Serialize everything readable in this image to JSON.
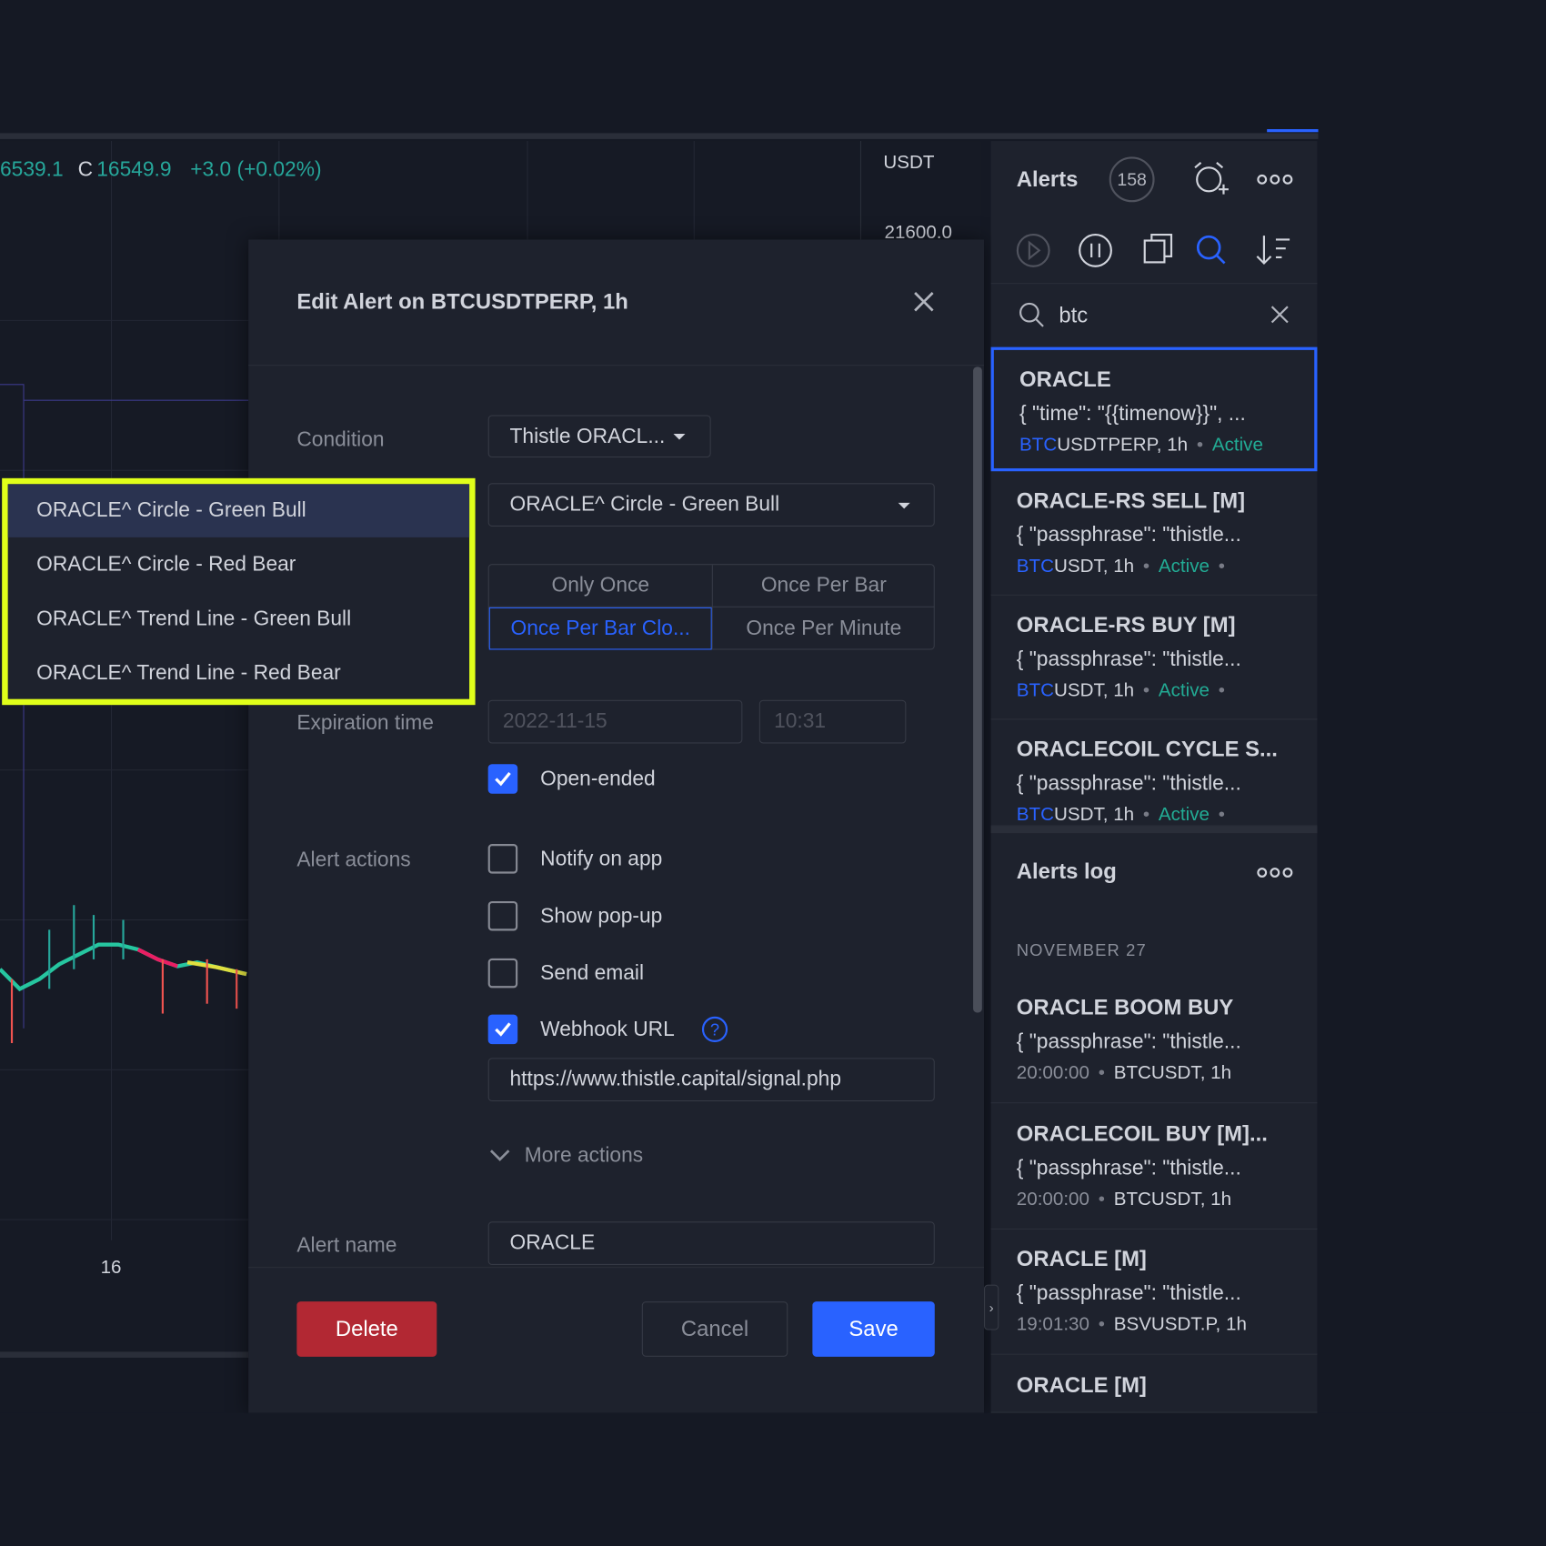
{
  "chart": {
    "ohlc_prefix": "6539.1",
    "close_label": "C",
    "close_value": "16549.9",
    "change": "+3.0 (+0.02%)",
    "currency": "USDT",
    "price_tick": "21600.0",
    "time_tick": "16"
  },
  "dialog": {
    "title": "Edit Alert on BTCUSDTPERP, 1h",
    "condition_label": "Condition",
    "condition_source": "Thistle ORACL...",
    "condition_value": "ORACLE^ Circle - Green Bull",
    "trigger_options": [
      "Only Once",
      "Once Per Bar",
      "Once Per Bar Clo...",
      "Once Per Minute"
    ],
    "expiration_label": "Expiration time",
    "expiration_date": "2022-11-15",
    "expiration_time": "10:31",
    "open_ended": "Open-ended",
    "actions_label": "Alert actions",
    "actions": [
      {
        "label": "Notify on app",
        "checked": false
      },
      {
        "label": "Show pop-up",
        "checked": false
      },
      {
        "label": "Send email",
        "checked": false
      },
      {
        "label": "Webhook URL",
        "checked": true
      }
    ],
    "webhook_url": "https://www.thistle.capital/signal.php",
    "more_actions": "More actions",
    "name_label": "Alert name",
    "name_value": "ORACLE",
    "buttons": {
      "delete": "Delete",
      "cancel": "Cancel",
      "save": "Save"
    }
  },
  "dropdown": {
    "options": [
      "ORACLE^ Circle - Green Bull",
      "ORACLE^ Circle - Red Bear",
      "ORACLE^ Trend Line - Green Bull",
      "ORACLE^ Trend Line - Red Bear"
    ]
  },
  "alerts": {
    "title": "Alerts",
    "count": "158",
    "search": "btc",
    "items": [
      {
        "name": "ORACLE",
        "message": "{ \"time\": \"{{timenow}}\", ...",
        "match": "BTC",
        "symbol": "USDTPERP, 1h",
        "status": "Active"
      },
      {
        "name": "ORACLE-RS SELL [M]",
        "message": "{ \"passphrase\": \"thistle...",
        "match": "BTC",
        "symbol": "USDT, 1h",
        "status": "Active"
      },
      {
        "name": "ORACLE-RS BUY [M]",
        "message": "{ \"passphrase\": \"thistle...",
        "match": "BTC",
        "symbol": "USDT, 1h",
        "status": "Active"
      },
      {
        "name": "ORACLECOIL CYCLE S...",
        "message": "{ \"passphrase\": \"thistle...",
        "match": "BTC",
        "symbol": "USDT, 1h",
        "status": "Active"
      }
    ]
  },
  "log": {
    "title": "Alerts log",
    "date": "NOVEMBER 27",
    "items": [
      {
        "name": "ORACLE BOOM BUY",
        "message": "{ \"passphrase\": \"thistle...",
        "time": "20:00:00",
        "symbol": "BTCUSDT, 1h"
      },
      {
        "name": "ORACLECOIL BUY [M]...",
        "message": "{ \"passphrase\": \"thistle...",
        "time": "20:00:00",
        "symbol": "BTCUSDT, 1h"
      },
      {
        "name": "ORACLE [M]",
        "message": "{ \"passphrase\": \"thistle...",
        "time": "19:01:30",
        "symbol": "BSVUSDT.P, 1h"
      },
      {
        "name": "ORACLE [M]"
      }
    ]
  }
}
